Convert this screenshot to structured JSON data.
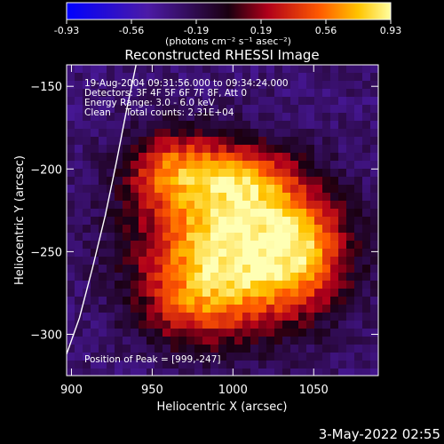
{
  "chart_data": {
    "type": "heatmap",
    "title": "Reconstructed RHESSI Image",
    "xlabel": "Heliocentric X (arcsec)",
    "ylabel": "Heliocentric Y (arcsec)",
    "xlim": [
      897,
      1090
    ],
    "ylim": [
      -325,
      -137
    ],
    "x_ticks": [
      900,
      950,
      1000,
      1050
    ],
    "y_ticks": [
      -150,
      -200,
      -250,
      -300
    ],
    "colorbar": {
      "range": [
        -0.93,
        0.93
      ],
      "ticks": [
        "-0.93",
        "-0.56",
        "-0.19",
        "0.19",
        "0.56",
        "0.93"
      ],
      "unit_label": "(photons cm⁻² s⁻¹ asec⁻²)",
      "colormap": "blue-violet-red-yellow-white"
    },
    "annotations": [
      "19-Aug-2004 09:31:56.000 to 09:34:24.000",
      "Detectors: 3F 4F 5F 6F 7F 8F, Att 0",
      "Energy Range: 3.0 - 6.0 keV",
      "Clean     Total counts: 2.31E+04"
    ],
    "peak_label": "Position of Peak = [999,-247]",
    "peak": {
      "x": 999,
      "y": -247
    },
    "limb_curve": [
      [
        897,
        -312
      ],
      [
        905,
        -290
      ],
      [
        913,
        -260
      ],
      [
        921,
        -228
      ],
      [
        928,
        -195
      ],
      [
        934,
        -165
      ],
      [
        940,
        -137
      ]
    ],
    "source_blobs": [
      {
        "x": 999,
        "y": -247,
        "sx": 38,
        "sy": 32,
        "amp": 1.0
      },
      {
        "x": 965,
        "y": -200,
        "sx": 22,
        "sy": 16,
        "amp": 0.55
      },
      {
        "x": 1040,
        "y": -250,
        "sx": 22,
        "sy": 24,
        "amp": 0.5
      },
      {
        "x": 1010,
        "y": -205,
        "sx": 20,
        "sy": 14,
        "amp": 0.35
      },
      {
        "x": 975,
        "y": -285,
        "sx": 22,
        "sy": 16,
        "amp": 0.3
      }
    ]
  },
  "footer": {
    "date": "3-May-2022 02:55"
  }
}
